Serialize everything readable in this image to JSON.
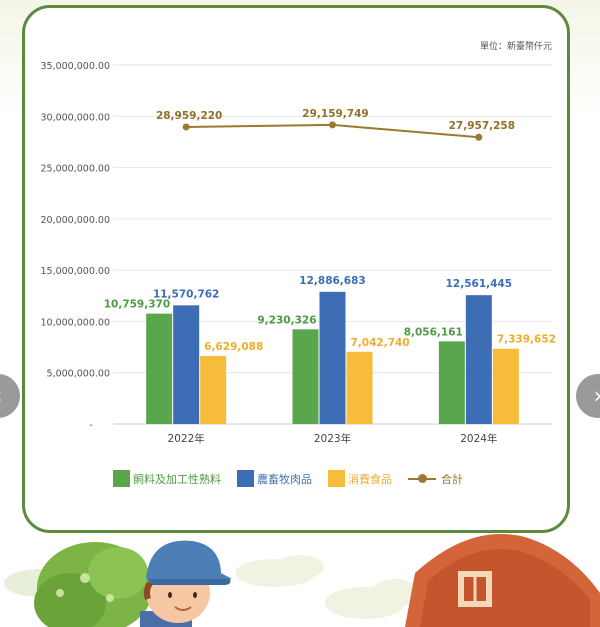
{
  "unit_label": "單位：新臺幣仟元",
  "chart_data": {
    "type": "bar",
    "categories": [
      "2022年",
      "2023年",
      "2024年"
    ],
    "series": [
      {
        "name": "飼料及加工性熟料",
        "kind": "bar",
        "color": "#5aa64c",
        "label_color": "#4f9a43",
        "values": [
          10759370,
          9230326,
          8056161
        ],
        "labels": [
          "10,759,370",
          "9,230,326",
          "8,056,161"
        ]
      },
      {
        "name": "農畜牧肉品",
        "kind": "bar",
        "color": "#3d6db5",
        "label_color": "#3d6db5",
        "values": [
          11570762,
          12886683,
          12561445
        ],
        "labels": [
          "11,570,762",
          "12,886,683",
          "12,561,445"
        ]
      },
      {
        "name": "消費食品",
        "kind": "bar",
        "color": "#f7bc3a",
        "label_color": "#f0ad2b",
        "values": [
          6629088,
          7042740,
          7339652
        ],
        "labels": [
          "6,629,088",
          "7,042,740",
          "7,339,652"
        ]
      },
      {
        "name": "合計",
        "kind": "line",
        "color": "#9a7a30",
        "label_color": "#8f7128",
        "values": [
          28959220,
          29159749,
          27957258
        ],
        "labels": [
          "28,959,220",
          "29,159,749",
          "27,957,258"
        ]
      }
    ],
    "yticks": [
      "-",
      "5,000,000.00",
      "10,000,000.00",
      "15,000,000.00",
      "20,000,000.00",
      "25,000,000.00",
      "30,000,000.00",
      "35,000,000.00"
    ],
    "ylim": [
      0,
      35000000
    ],
    "grid": true,
    "legend_position": "bottom"
  },
  "nav": {
    "prev_icon": "‹",
    "next_icon": "›"
  }
}
